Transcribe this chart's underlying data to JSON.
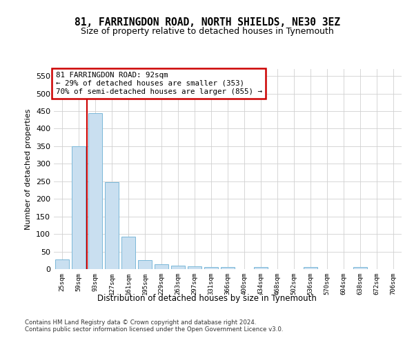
{
  "title": "81, FARRINGDON ROAD, NORTH SHIELDS, NE30 3EZ",
  "subtitle": "Size of property relative to detached houses in Tynemouth",
  "xlabel": "Distribution of detached houses by size in Tynemouth",
  "ylabel": "Number of detached properties",
  "bin_labels": [
    "25sqm",
    "59sqm",
    "93sqm",
    "127sqm",
    "161sqm",
    "195sqm",
    "229sqm",
    "263sqm",
    "297sqm",
    "331sqm",
    "366sqm",
    "400sqm",
    "434sqm",
    "468sqm",
    "502sqm",
    "536sqm",
    "570sqm",
    "604sqm",
    "638sqm",
    "672sqm",
    "706sqm"
  ],
  "bar_values": [
    27,
    350,
    445,
    248,
    92,
    25,
    14,
    10,
    8,
    6,
    5,
    0,
    5,
    0,
    0,
    5,
    0,
    0,
    5,
    0,
    0
  ],
  "bar_color": "#c9dff0",
  "bar_edge_color": "#7ab8d9",
  "vline_color": "#cc0000",
  "annotation_text": "81 FARRINGDON ROAD: 92sqm\n← 29% of detached houses are smaller (353)\n70% of semi-detached houses are larger (855) →",
  "annotation_box_color": "#ffffff",
  "annotation_box_edge_color": "#cc0000",
  "footer_text": "Contains HM Land Registry data © Crown copyright and database right 2024.\nContains public sector information licensed under the Open Government Licence v3.0.",
  "ylim": [
    0,
    570
  ],
  "yticks": [
    0,
    50,
    100,
    150,
    200,
    250,
    300,
    350,
    400,
    450,
    500,
    550
  ],
  "background_color": "#ffffff",
  "grid_color": "#d0d0d0",
  "title_fontsize": 10.5,
  "subtitle_fontsize": 9
}
